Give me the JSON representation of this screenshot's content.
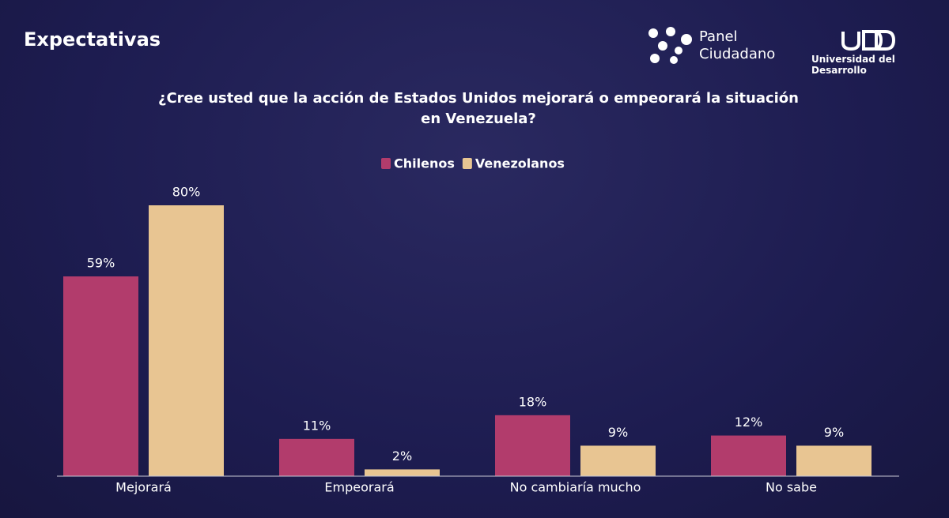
{
  "header": {
    "title": "Expectativas",
    "logo_line1": "Panel",
    "logo_line2": "Ciudadano",
    "university": "Universidad del Desarrollo"
  },
  "chart_data": {
    "type": "bar",
    "title": "¿Cree usted que la acción de Estados Unidos mejorará o empeorará la situación en Venezuela?",
    "categories": [
      "Mejorará",
      "Empeorará",
      "No cambiaría mucho",
      "No sabe"
    ],
    "series": [
      {
        "name": "Chilenos",
        "color": "#b23c6c",
        "values": [
          59,
          11,
          18,
          12
        ],
        "value_labels": [
          "59%",
          "11%",
          "18%",
          "12%"
        ]
      },
      {
        "name": "Venezolanos",
        "color": "#e8c592",
        "values": [
          80,
          2,
          9,
          9
        ],
        "value_labels": [
          "80%",
          "2%",
          "9%",
          "9%"
        ]
      }
    ],
    "ylim": [
      0,
      80
    ],
    "legend": "top"
  }
}
